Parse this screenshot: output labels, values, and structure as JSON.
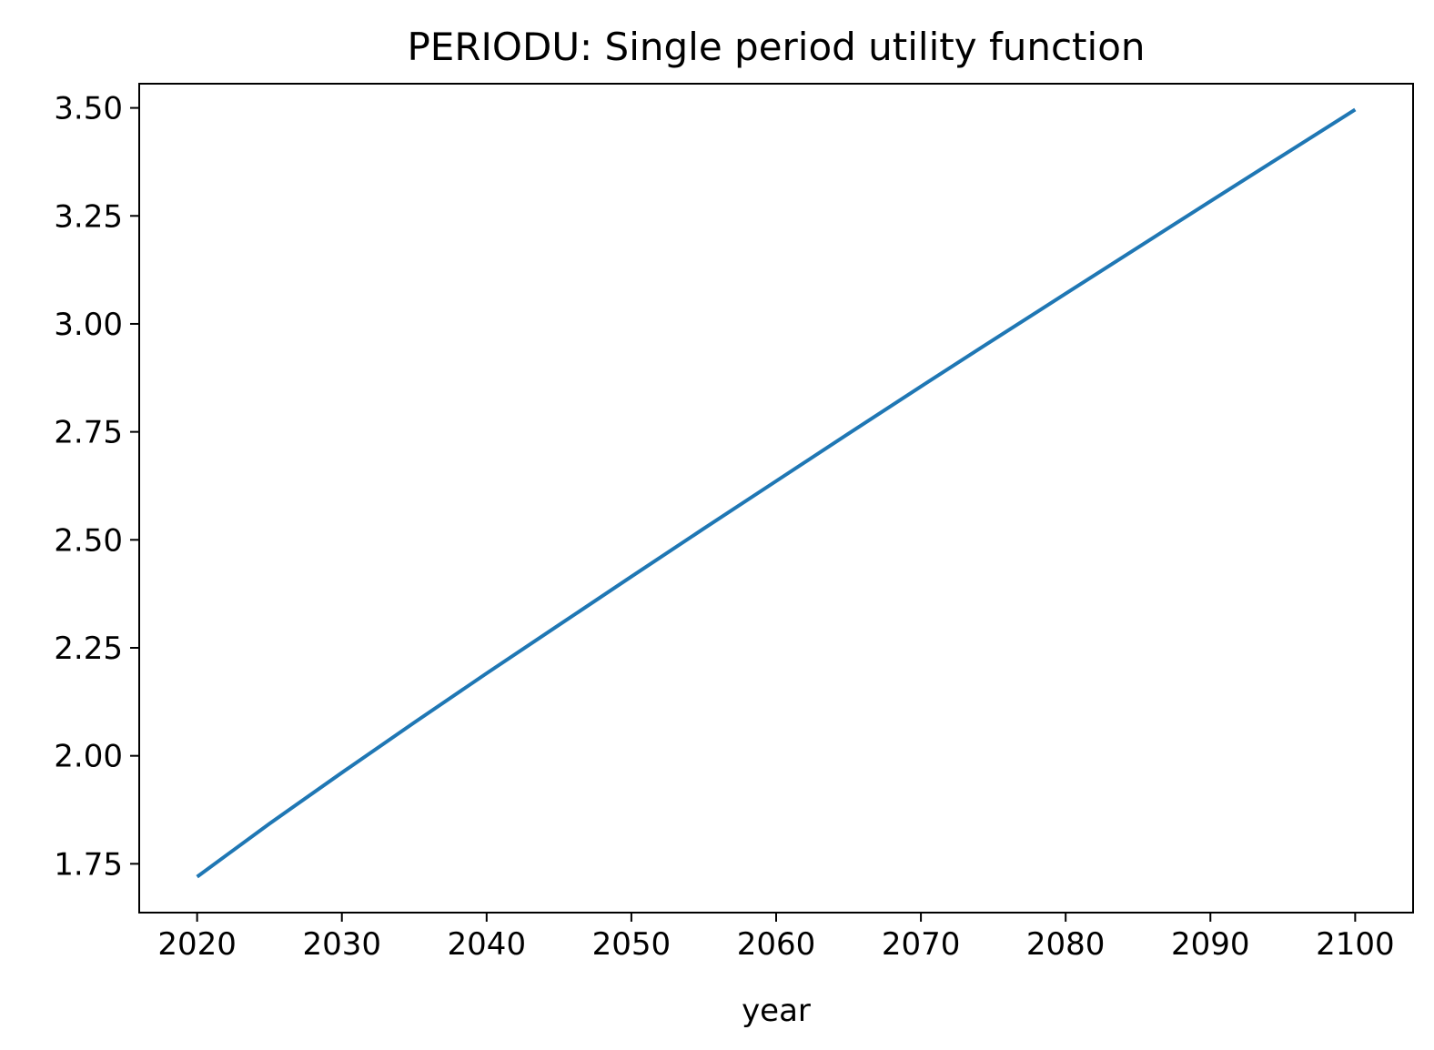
{
  "chart_data": {
    "type": "line",
    "title": "PERIODU: Single period utility function",
    "xlabel": "year",
    "ylabel": "",
    "xlim": [
      2016,
      2104
    ],
    "ylim": [
      1.637,
      3.556
    ],
    "x_ticks": [
      2020,
      2030,
      2040,
      2050,
      2060,
      2070,
      2080,
      2090,
      2100
    ],
    "x_tick_labels": [
      "2020",
      "2030",
      "2040",
      "2050",
      "2060",
      "2070",
      "2080",
      "2090",
      "2100"
    ],
    "y_ticks": [
      1.75,
      2.0,
      2.25,
      2.5,
      2.75,
      3.0,
      3.25,
      3.5
    ],
    "y_tick_labels": [
      "1.75",
      "2.00",
      "2.25",
      "2.50",
      "2.75",
      "3.00",
      "3.25",
      "3.50"
    ],
    "grid": false,
    "series": [
      {
        "color": "#1f77b4",
        "x": [
          2020,
          2025,
          2030,
          2035,
          2040,
          2045,
          2050,
          2055,
          2060,
          2065,
          2070,
          2075,
          2080,
          2085,
          2090,
          2095,
          2100
        ],
        "y": [
          1.72,
          1.843,
          1.961,
          2.077,
          2.191,
          2.303,
          2.415,
          2.526,
          2.636,
          2.746,
          2.855,
          2.963,
          3.07,
          3.177,
          3.284,
          3.39,
          3.496
        ]
      }
    ]
  }
}
